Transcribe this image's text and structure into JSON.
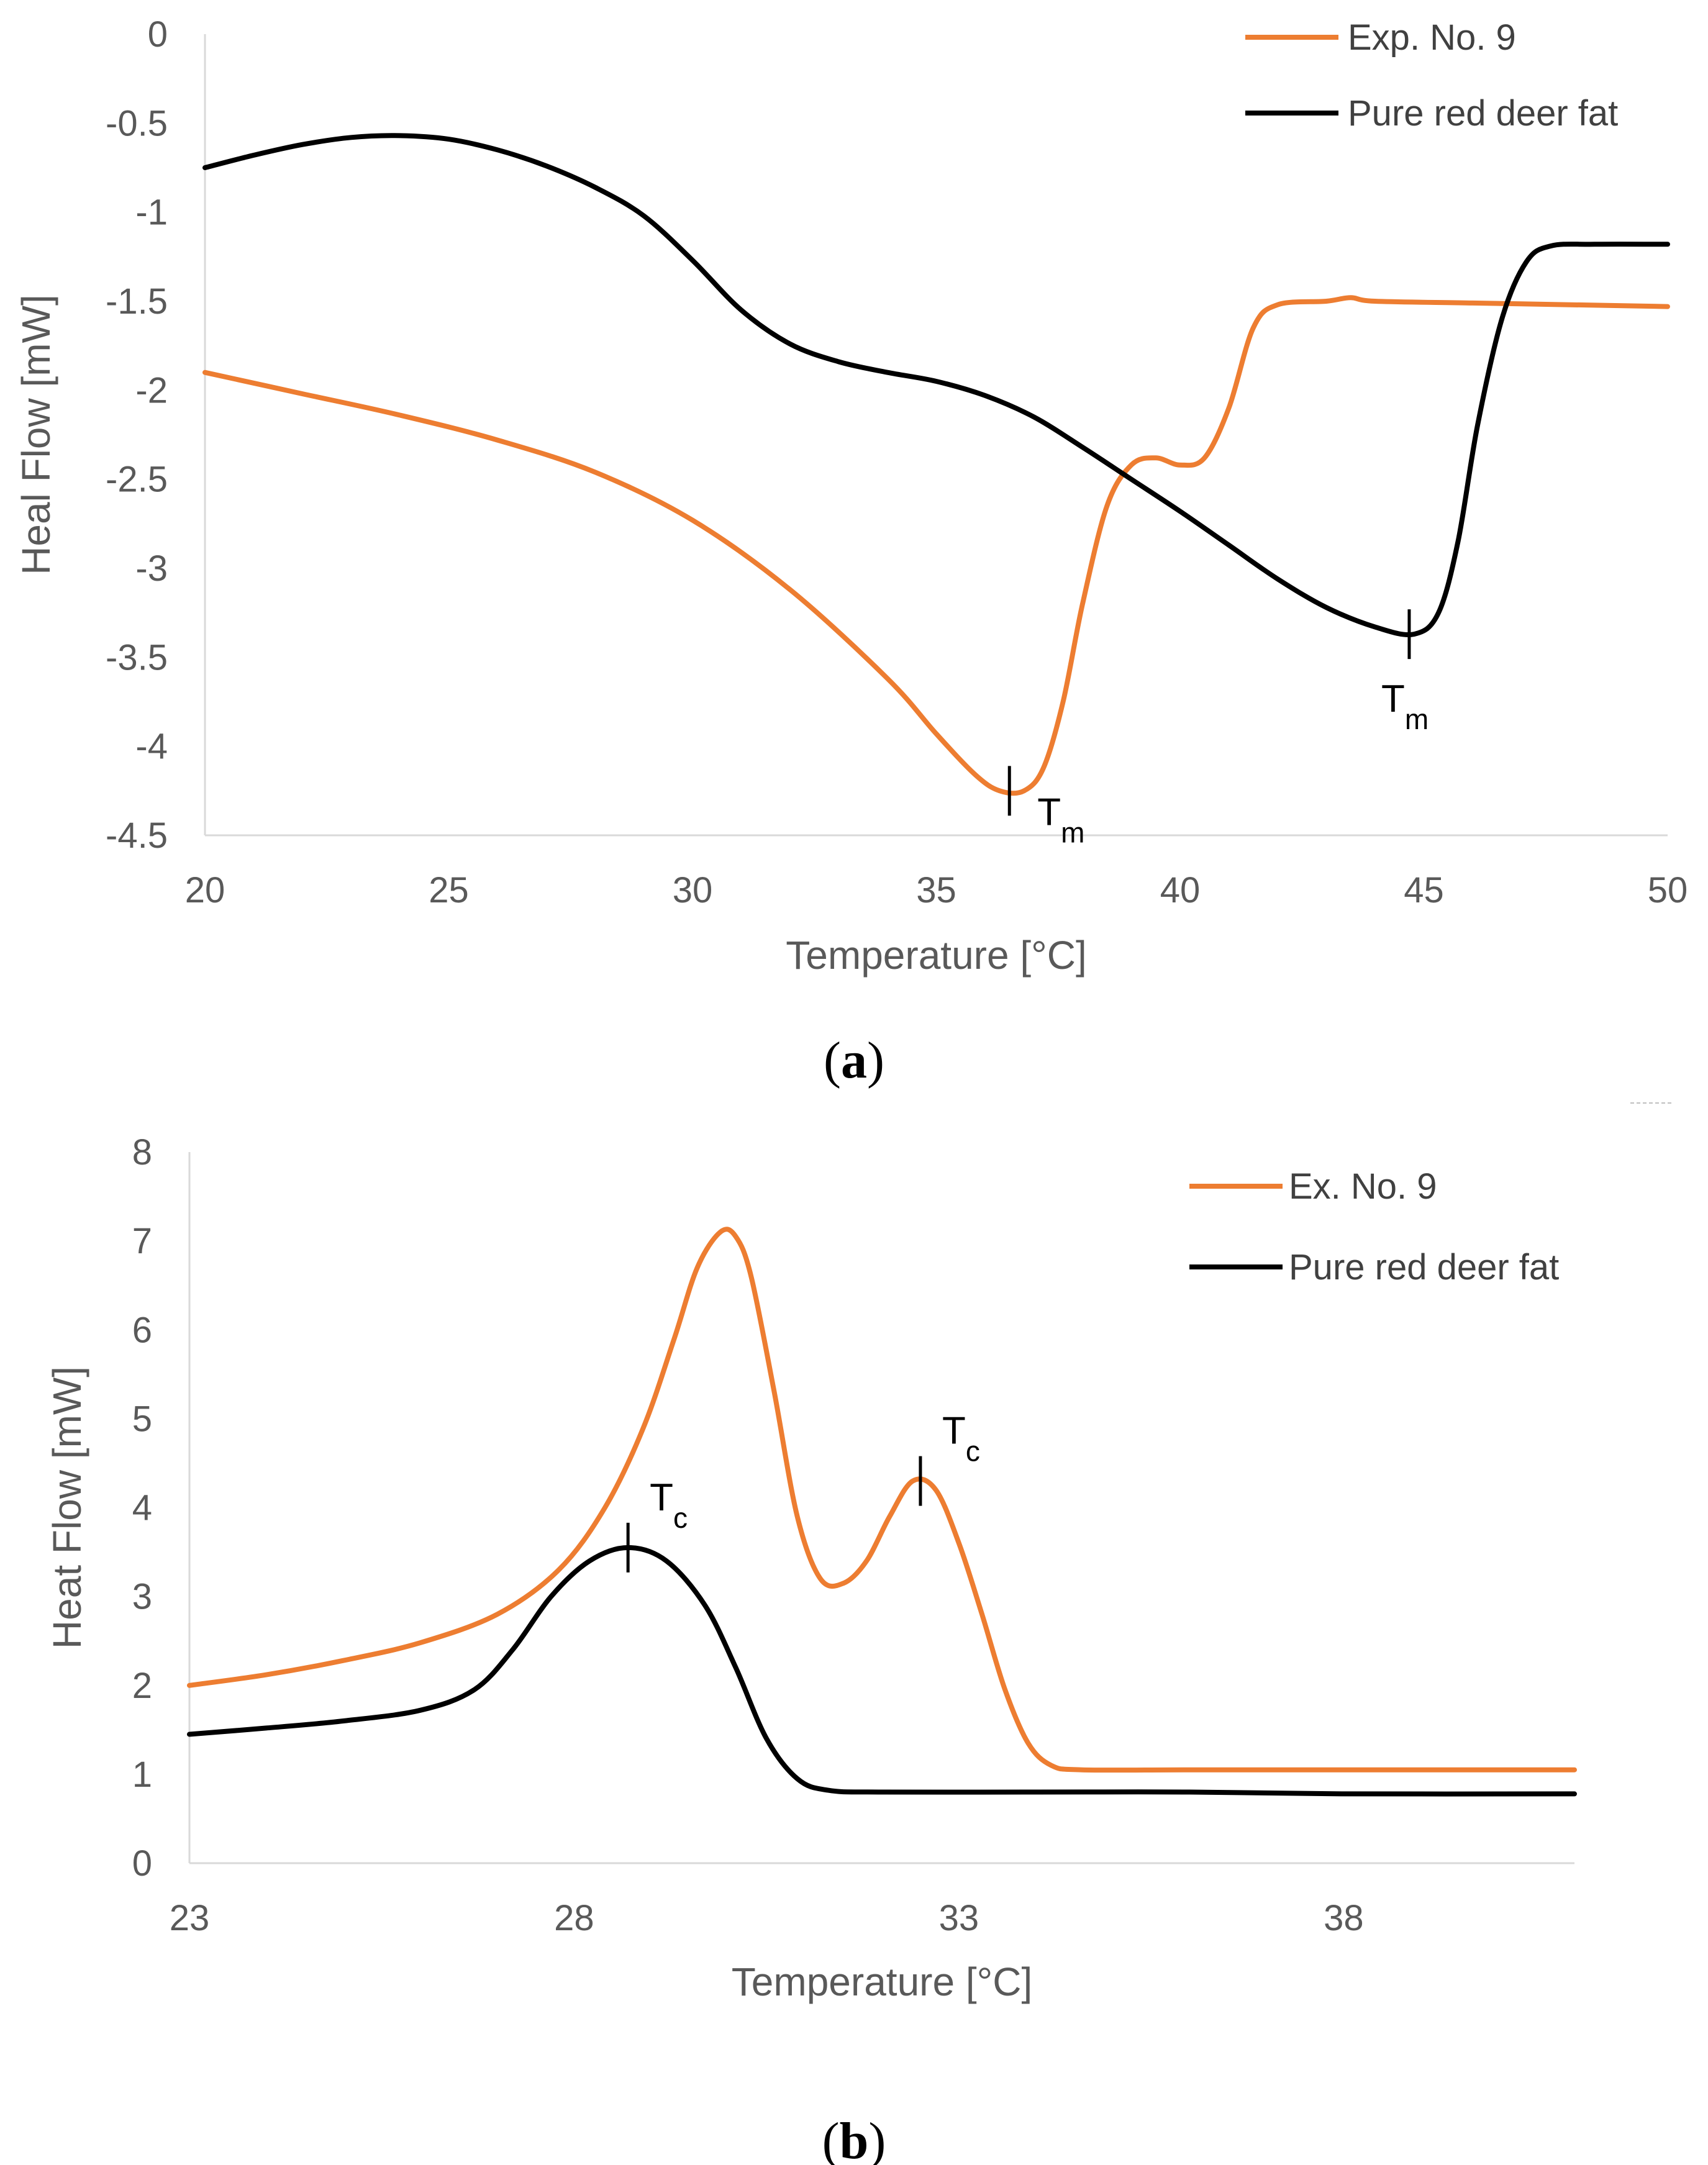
{
  "colors": {
    "orange": "#ED7D31",
    "black": "#000000",
    "axis": "#D9D9D9",
    "tick": "#595959"
  },
  "chart_data": [
    {
      "type": "line",
      "panel_label": "a",
      "xlabel": "Temperature [°C]",
      "ylabel": "Heal Flow [mW]",
      "xlim": [
        20,
        50
      ],
      "ylim": [
        -4.5,
        0
      ],
      "xticks": [
        20,
        25,
        30,
        35,
        40,
        45,
        50
      ],
      "yticks": [
        0,
        -0.5,
        -1,
        -1.5,
        -2,
        -2.5,
        -3,
        -3.5,
        -4,
        -4.5
      ],
      "ytick_labels": [
        "0",
        "-0.5",
        "-1",
        "-1.5",
        "-2",
        "-2.5",
        "-3",
        "-3.5",
        "-4",
        "-4.5"
      ],
      "legend_position": "top-right",
      "series": [
        {
          "name": "Exp. No. 9",
          "color": "#ED7D31",
          "points": [
            [
              20,
              -1.9
            ],
            [
              22,
              -2.02
            ],
            [
              24,
              -2.14
            ],
            [
              26,
              -2.28
            ],
            [
              28,
              -2.46
            ],
            [
              30,
              -2.73
            ],
            [
              32,
              -3.12
            ],
            [
              34,
              -3.62
            ],
            [
              35,
              -3.93
            ],
            [
              35.8,
              -4.16
            ],
            [
              36.3,
              -4.25
            ],
            [
              36.8,
              -4.25
            ],
            [
              37.2,
              -4.12
            ],
            [
              37.6,
              -3.75
            ],
            [
              38,
              -3.2
            ],
            [
              38.5,
              -2.65
            ],
            [
              39,
              -2.42
            ],
            [
              39.5,
              -2.38
            ],
            [
              40,
              -2.42
            ],
            [
              40.5,
              -2.38
            ],
            [
              41,
              -2.1
            ],
            [
              41.5,
              -1.65
            ],
            [
              42,
              -1.52
            ],
            [
              43,
              -1.5
            ],
            [
              43.5,
              -1.48
            ],
            [
              44,
              -1.5
            ],
            [
              46,
              -1.51
            ],
            [
              48,
              -1.52
            ],
            [
              50,
              -1.53
            ]
          ]
        },
        {
          "name": "Pure red deer fat",
          "color": "#000000",
          "points": [
            [
              20,
              -0.75
            ],
            [
              21,
              -0.68
            ],
            [
              22,
              -0.62
            ],
            [
              23,
              -0.58
            ],
            [
              24,
              -0.57
            ],
            [
              25,
              -0.59
            ],
            [
              26,
              -0.65
            ],
            [
              27,
              -0.74
            ],
            [
              28,
              -0.86
            ],
            [
              29,
              -1.02
            ],
            [
              30,
              -1.27
            ],
            [
              31,
              -1.55
            ],
            [
              32,
              -1.74
            ],
            [
              33,
              -1.84
            ],
            [
              34,
              -1.9
            ],
            [
              35,
              -1.95
            ],
            [
              36,
              -2.03
            ],
            [
              37,
              -2.15
            ],
            [
              38,
              -2.32
            ],
            [
              39,
              -2.5
            ],
            [
              40,
              -2.68
            ],
            [
              41,
              -2.87
            ],
            [
              42,
              -3.06
            ],
            [
              43,
              -3.22
            ],
            [
              44,
              -3.33
            ],
            [
              44.8,
              -3.37
            ],
            [
              45.3,
              -3.25
            ],
            [
              45.7,
              -2.85
            ],
            [
              46.1,
              -2.2
            ],
            [
              46.6,
              -1.6
            ],
            [
              47.1,
              -1.28
            ],
            [
              47.6,
              -1.19
            ],
            [
              48.5,
              -1.18
            ],
            [
              50,
              -1.18
            ]
          ]
        }
      ],
      "annotations": [
        {
          "label": "T",
          "sub": "m",
          "x": 36.5,
          "y": -4.25
        },
        {
          "label": "T",
          "sub": "m",
          "x": 44.7,
          "y": -3.37
        }
      ]
    },
    {
      "type": "line",
      "panel_label": "b",
      "xlabel": "Temperature [°C]",
      "ylabel": "Heat Flow [mW]",
      "xlim": [
        23,
        41
      ],
      "ylim": [
        0,
        8
      ],
      "xticks": [
        23,
        28,
        33,
        38
      ],
      "yticks": [
        0,
        1,
        2,
        3,
        4,
        5,
        6,
        7,
        8
      ],
      "ytick_labels": [
        "0",
        "1",
        "2",
        "3",
        "4",
        "5",
        "6",
        "7",
        "8"
      ],
      "legend_position": "top-right",
      "series": [
        {
          "name": "Ex. No. 9",
          "color": "#ED7D31",
          "points": [
            [
              23,
              2.0
            ],
            [
              24,
              2.12
            ],
            [
              25,
              2.28
            ],
            [
              26,
              2.48
            ],
            [
              27,
              2.8
            ],
            [
              27.8,
              3.3
            ],
            [
              28.4,
              4.0
            ],
            [
              28.9,
              4.9
            ],
            [
              29.3,
              5.9
            ],
            [
              29.6,
              6.7
            ],
            [
              29.9,
              7.1
            ],
            [
              30.1,
              7.05
            ],
            [
              30.3,
              6.6
            ],
            [
              30.6,
              5.3
            ],
            [
              30.9,
              3.9
            ],
            [
              31.2,
              3.2
            ],
            [
              31.5,
              3.15
            ],
            [
              31.8,
              3.4
            ],
            [
              32.1,
              3.9
            ],
            [
              32.4,
              4.3
            ],
            [
              32.7,
              4.2
            ],
            [
              33,
              3.6
            ],
            [
              33.3,
              2.8
            ],
            [
              33.6,
              1.95
            ],
            [
              33.9,
              1.35
            ],
            [
              34.2,
              1.1
            ],
            [
              34.6,
              1.05
            ],
            [
              36,
              1.05
            ],
            [
              38,
              1.05
            ],
            [
              41,
              1.05
            ]
          ]
        },
        {
          "name": "Pure red deer fat",
          "color": "#000000",
          "points": [
            [
              23,
              1.45
            ],
            [
              24,
              1.52
            ],
            [
              25,
              1.6
            ],
            [
              26,
              1.72
            ],
            [
              26.7,
              1.95
            ],
            [
              27.2,
              2.4
            ],
            [
              27.7,
              3.0
            ],
            [
              28.2,
              3.4
            ],
            [
              28.7,
              3.55
            ],
            [
              29.2,
              3.4
            ],
            [
              29.7,
              2.9
            ],
            [
              30.1,
              2.2
            ],
            [
              30.5,
              1.4
            ],
            [
              30.9,
              0.95
            ],
            [
              31.3,
              0.82
            ],
            [
              32,
              0.8
            ],
            [
              34,
              0.8
            ],
            [
              36,
              0.8
            ],
            [
              38,
              0.78
            ],
            [
              41,
              0.78
            ]
          ]
        }
      ],
      "annotations": [
        {
          "label": "T",
          "sub": "c",
          "x": 28.7,
          "y": 3.55
        },
        {
          "label": "T",
          "sub": "c",
          "x": 32.5,
          "y": 4.3
        }
      ]
    }
  ]
}
